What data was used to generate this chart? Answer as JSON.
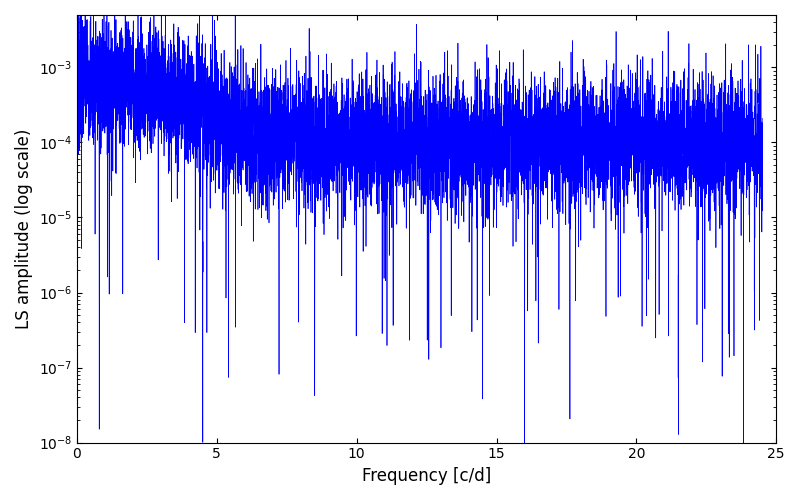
{
  "xlabel": "Frequency [c/d]",
  "ylabel": "LS amplitude (log scale)",
  "xlim": [
    0,
    25
  ],
  "ylim": [
    1e-08,
    0.005
  ],
  "line_color": "#0000ff",
  "line_width": 0.5,
  "freq_min": 0.0,
  "freq_max": 24.5,
  "n_points": 8000,
  "seed": 7,
  "yscale": "log",
  "figsize": [
    8.0,
    5.0
  ],
  "dpi": 100,
  "xticks": [
    0,
    5,
    10,
    15,
    20,
    25
  ],
  "yticks": [
    1e-08,
    1e-07,
    1e-06,
    1e-05,
    0.0001,
    0.001
  ]
}
